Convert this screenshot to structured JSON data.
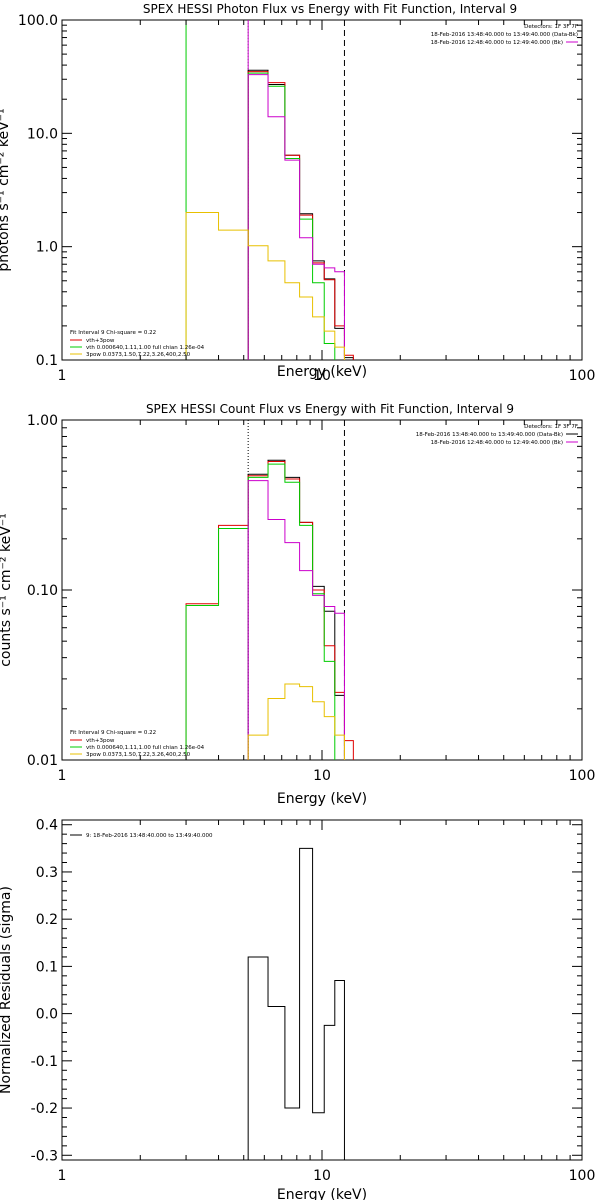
{
  "chart_data": [
    {
      "type": "line",
      "title": "SPEX HESSI Photon Flux vs Energy with Fit Function, Interval 9",
      "xlabel": "Energy (keV)",
      "ylabel": "photons s⁻¹ cm⁻² keV⁻¹",
      "xscale": "log",
      "yscale": "log",
      "xlim": [
        1,
        100
      ],
      "ylim": [
        0.1,
        100
      ],
      "x_ticks": [
        "1",
        "10",
        "100"
      ],
      "y_ticks": [
        "0.1",
        "1.0",
        "10.0",
        "100.0"
      ],
      "header_lines": [
        {
          "text": "Detectors: 1F 3F 7F",
          "color": "#000000"
        },
        {
          "text": "18-Feb-2016 13:48:40.000 to 13:49:40.000 (Data-Bk)",
          "color": "#000000"
        },
        {
          "text": "18-Feb-2016 12:48:40.000 to 12:49:40.000 (Bk)",
          "color": "#cc00cc"
        }
      ],
      "legend_title": "Fit Interval 9   Chi-square = 0.22",
      "legend_position": "bottom-left",
      "vlines": [
        {
          "x": 3.0,
          "color": "#00cc00",
          "style": "solid"
        },
        {
          "x": 5.2,
          "color": "#00aa00",
          "style": "dotted"
        },
        {
          "x": 5.2,
          "color": "#cc00cc",
          "style": "solid"
        },
        {
          "x": 12.2,
          "color": "#000000",
          "style": "dashed"
        }
      ],
      "bin_edges": [
        3.0,
        4.0,
        5.2,
        6.2,
        7.2,
        8.2,
        9.2,
        10.2,
        11.2,
        12.2,
        13.2
      ],
      "series": [
        {
          "name": "",
          "color": "#000000",
          "values": [
            null,
            null,
            36,
            27,
            6.4,
            1.95,
            0.75,
            0.52,
            0.19,
            0.105
          ]
        },
        {
          "name": "vth+3pow",
          "color": "#e00000",
          "values": [
            null,
            null,
            35,
            28,
            6.4,
            1.9,
            0.72,
            0.51,
            0.2,
            0.11
          ]
        },
        {
          "name": "vth 0.000640,1.11,1.00   full chian 1.26e-04",
          "color": "#00cc00",
          "values": [
            null,
            null,
            34,
            26,
            6.0,
            1.75,
            0.48,
            0.14,
            null,
            null
          ]
        },
        {
          "name": "",
          "color": "#cc00cc",
          "values": [
            null,
            null,
            33,
            14,
            5.8,
            1.2,
            0.7,
            0.65,
            0.6,
            null
          ]
        },
        {
          "name": "3pow 0.0373,1.50,7.22,3.26,400,2.50",
          "color": "#e8c000",
          "values": [
            2.0,
            1.4,
            1.02,
            0.75,
            0.48,
            0.36,
            0.24,
            0.18,
            0.13,
            null
          ]
        }
      ]
    },
    {
      "type": "line",
      "title": "SPEX HESSI Count Flux vs Energy with Fit Function, Interval 9",
      "xlabel": "Energy (keV)",
      "ylabel": "counts s⁻¹ cm⁻² keV⁻¹",
      "xscale": "log",
      "yscale": "log",
      "xlim": [
        1,
        100
      ],
      "ylim": [
        0.01,
        1.0
      ],
      "x_ticks": [
        "1",
        "10",
        "100"
      ],
      "y_ticks": [
        "0.01",
        "0.10",
        "1.00"
      ],
      "header_lines": [
        {
          "text": "Detectors: 1F 3F 7F",
          "color": "#000000"
        },
        {
          "text": "18-Feb-2016 13:48:40.000 to 13:49:40.000 (Data-Bk)",
          "color": "#000000"
        },
        {
          "text": "18-Feb-2016 12:48:40.000 to 12:49:40.000 (Bk)",
          "color": "#cc00cc"
        }
      ],
      "legend_title": "Fit Interval 9   Chi-square = 0.22",
      "legend_position": "bottom-left",
      "vlines": [
        {
          "x": 5.2,
          "color": "#000000",
          "style": "dotted"
        },
        {
          "x": 12.2,
          "color": "#000000",
          "style": "dashed"
        }
      ],
      "bin_edges": [
        3.0,
        4.0,
        5.2,
        6.2,
        7.2,
        8.2,
        9.2,
        10.2,
        11.2,
        12.2,
        13.2
      ],
      "series": [
        {
          "name": "",
          "color": "#000000",
          "values": [
            null,
            null,
            0.48,
            0.58,
            0.46,
            0.25,
            0.105,
            0.075,
            0.024,
            null
          ]
        },
        {
          "name": "vth+3pow",
          "color": "#e00000",
          "values": [
            0.083,
            0.24,
            0.47,
            0.57,
            0.45,
            0.25,
            0.1,
            0.047,
            0.025,
            0.013
          ]
        },
        {
          "name": "vth 0.000640,1.11,1.00   full chian 1.26e-04",
          "color": "#00cc00",
          "values": [
            0.081,
            0.23,
            0.46,
            0.55,
            0.43,
            0.24,
            0.095,
            0.038,
            null,
            null
          ]
        },
        {
          "name": "",
          "color": "#cc00cc",
          "values": [
            null,
            null,
            0.44,
            0.26,
            0.19,
            0.13,
            0.093,
            0.08,
            0.073,
            null
          ]
        },
        {
          "name": "3pow 0.0373,1.50,7.22,3.26,400,2.50",
          "color": "#e8c000",
          "values": [
            null,
            null,
            0.014,
            0.023,
            0.028,
            0.027,
            0.022,
            0.018,
            0.014,
            null
          ]
        }
      ]
    },
    {
      "type": "line",
      "title": "",
      "xlabel": "Energy (keV)",
      "ylabel": "Normalized Residuals (sigma)",
      "xscale": "log",
      "yscale": "linear",
      "xlim": [
        1,
        100
      ],
      "ylim": [
        -0.31,
        0.41
      ],
      "x_ticks": [
        "1",
        "10",
        "100"
      ],
      "y_ticks": [
        "-0.3",
        "-0.2",
        "-0.1",
        "0.0",
        "0.1",
        "0.2",
        "0.3",
        "0.4"
      ],
      "legend_position": "top-left",
      "bin_edges": [
        5.2,
        6.2,
        7.2,
        8.2,
        9.2,
        10.2,
        11.2,
        12.2
      ],
      "series": [
        {
          "name": "9: 18-Feb-2016 13:48:40.000 to 13:49:40.000",
          "color": "#000000",
          "values": [
            0.12,
            0.015,
            -0.2,
            0.35,
            -0.21,
            -0.025,
            0.07
          ]
        }
      ]
    }
  ]
}
